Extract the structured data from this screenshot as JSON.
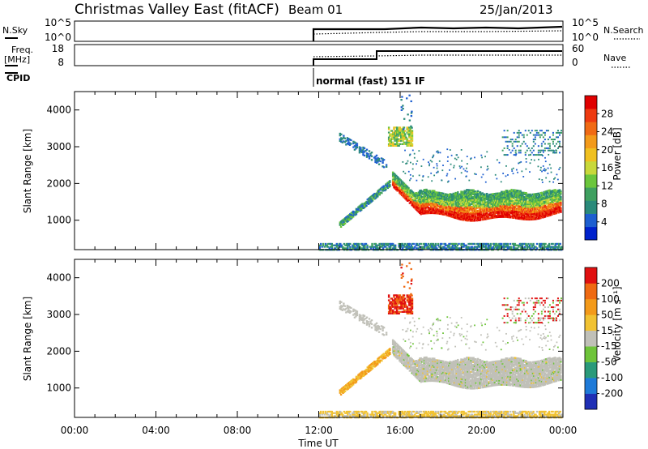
{
  "header": {
    "station": "Christmas Valley East (fitACF)",
    "beam": "Beam 01",
    "date": "25/Jan/2013"
  },
  "panels": {
    "nsky": {
      "label": "N.Sky",
      "ticks": [
        "10^5",
        "10^0"
      ]
    },
    "nsearch": {
      "label": "N.Search",
      "ticks": [
        "10^5",
        "10^0"
      ]
    },
    "freq": {
      "label_top": "Freq.",
      "label_unit": "[MHz]",
      "ticks": [
        "18",
        "8"
      ]
    },
    "nave": {
      "label": "Nave",
      "ticks": [
        "60",
        "0"
      ]
    },
    "cpid": {
      "label": "CPID",
      "mode": "normal (fast) 151 IF"
    }
  },
  "colors": {
    "power": [
      "#0022cc",
      "#1e5fd0",
      "#2a8a7a",
      "#3fa060",
      "#6bc63c",
      "#c8d83a",
      "#f0c020",
      "#f39a1a",
      "#f06a14",
      "#ee3a10",
      "#e00000"
    ],
    "velocity": [
      "#1f2fb5",
      "#1e7ad8",
      "#2a9a7a",
      "#6ec43a",
      "#c0c0b8",
      "#f1c232",
      "#f39a1a",
      "#ef6a12",
      "#e01010"
    ]
  },
  "chart_data": [
    {
      "type": "heatmap",
      "title": "",
      "ylabel": "Slant Range [km]",
      "ylim": [
        200,
        4500
      ],
      "yticks": [
        "1000",
        "2000",
        "3000",
        "4000"
      ],
      "colorbar": {
        "label": "Power [dB]",
        "range": [
          0,
          32
        ],
        "ticks": [
          "4",
          "8",
          "12",
          "16",
          "20",
          "24",
          "28"
        ]
      }
    },
    {
      "type": "heatmap",
      "title": "",
      "ylabel": "Slant Range [km]",
      "xlabel": "Time UT",
      "ylim": [
        200,
        4500
      ],
      "yticks": [
        "1000",
        "2000",
        "3000",
        "4000"
      ],
      "xticks": [
        "00:00",
        "04:00",
        "08:00",
        "12:00",
        "16:00",
        "20:00",
        "00:00"
      ],
      "colorbar": {
        "label": "Velocity [m s⁻¹]",
        "range": [
          -250,
          250
        ],
        "ticks": [
          "200",
          "100",
          "50",
          "15",
          "-15",
          "-50",
          "-100",
          "-200"
        ]
      }
    }
  ]
}
